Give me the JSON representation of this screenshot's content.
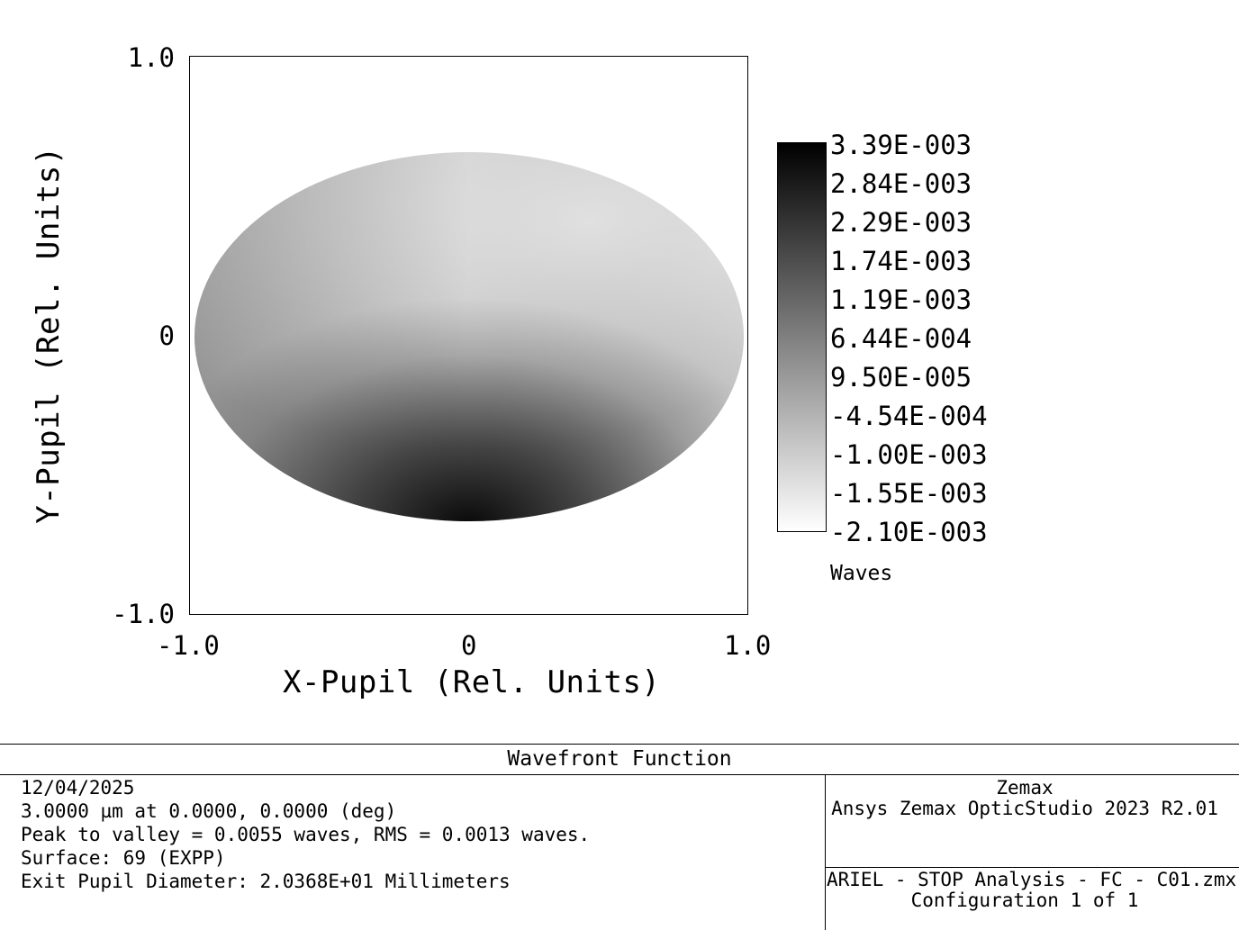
{
  "chart_data": {
    "type": "heatmap",
    "title": "Wavefront Function",
    "xlabel": "X-Pupil (Rel. Units)",
    "ylabel": "Y-Pupil (Rel. Units)",
    "xlim": [
      -1.0,
      1.0
    ],
    "ylim": [
      -1.0,
      1.0
    ],
    "x_ticks": [
      "-1.0",
      "0",
      "1.0"
    ],
    "y_ticks": [
      "1.0",
      "0",
      "-1.0"
    ],
    "colormap": "grayscale (black = max, white = min)",
    "colorbar": {
      "unit_label": "Waves",
      "max": 0.00339,
      "min": -0.0021,
      "tick_labels": [
        "3.39E-003",
        "2.84E-003",
        "2.29E-003",
        "1.74E-003",
        "1.19E-003",
        "6.44E-004",
        "9.50E-005",
        "-4.54E-004",
        "-1.00E-003",
        "-1.55E-003",
        "-2.10E-003"
      ]
    },
    "peak_to_valley_waves": 0.0055,
    "rms_waves": 0.0013
  },
  "footer": {
    "title": "Wavefront Function",
    "date": "12/04/2025",
    "wavelength_line": "3.0000 µm at 0.0000, 0.0000 (deg)",
    "pv_rms_line": "Peak to valley = 0.0055 waves, RMS = 0.0013 waves.",
    "surface_line": "Surface: 69 (EXPP)",
    "exit_pupil_line": "Exit Pupil Diameter: 2.0368E+01 Millimeters",
    "company": "Zemax",
    "product": "Ansys Zemax OpticStudio 2023 R2.01",
    "file": "ARIEL - STOP Analysis - FC - C01.zmx",
    "configuration": "Configuration 1 of 1"
  }
}
